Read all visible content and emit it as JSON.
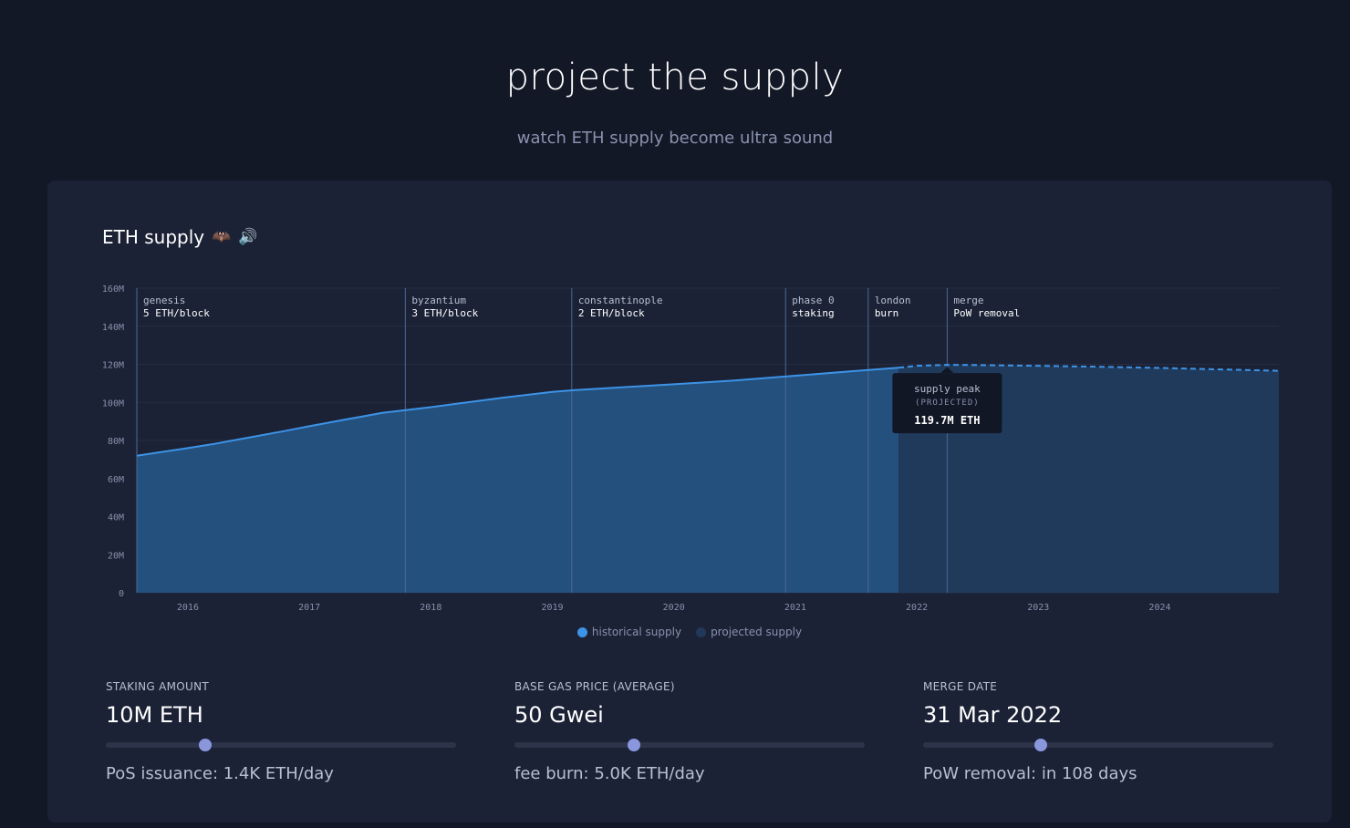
{
  "header": {
    "title": "project the supply",
    "subtitle": "watch ETH supply become ultra sound"
  },
  "card": {
    "title": "ETH supply",
    "icons": [
      "bat-icon",
      "speaker-icon"
    ]
  },
  "colors": {
    "historical_line": "#3d93e6",
    "historical_fill": "#23507d",
    "projected_fill": "#203a5c",
    "projected_line": "#3d93e6",
    "grid": "#262e44",
    "event_line": "#4d6894",
    "tooltip_bg": "#121726",
    "slider_thumb": "#8a97dd",
    "legend_historical": "#3d93e6",
    "legend_projected": "#22385a"
  },
  "chart_data": {
    "type": "area",
    "title": "ETH supply",
    "xlim": [
      2015.58,
      2024.98
    ],
    "ylim": [
      0,
      160
    ],
    "y_ticks": [
      0,
      20,
      40,
      60,
      80,
      100,
      120,
      140,
      160
    ],
    "y_tick_labels": [
      "0",
      "20M",
      "40M",
      "60M",
      "80M",
      "100M",
      "120M",
      "140M",
      "160M"
    ],
    "x_ticks": [
      2016,
      2017,
      2018,
      2019,
      2020,
      2021,
      2022,
      2023,
      2024
    ],
    "x_tick_labels": [
      "2016",
      "2017",
      "2018",
      "2019",
      "2020",
      "2021",
      "2022",
      "2023",
      "2024"
    ],
    "grid": true,
    "series": [
      {
        "name": "historical supply",
        "style": "solid",
        "x": [
          2015.58,
          2016,
          2016.2,
          2016.5,
          2016.8,
          2017,
          2017.3,
          2017.6,
          2017.8,
          2018,
          2018.3,
          2018.6,
          2019,
          2019.2,
          2019.6,
          2020,
          2020.5,
          2021,
          2021.5,
          2021.85
        ],
        "y": [
          72,
          76,
          78,
          81.5,
          85,
          87.5,
          91,
          94.5,
          96,
          97.5,
          100,
          102.5,
          105.5,
          106.5,
          108,
          109.5,
          111.5,
          114,
          116.5,
          118.2
        ]
      },
      {
        "name": "projected supply",
        "style": "dashed",
        "x": [
          2021.85,
          2022,
          2022.25,
          2022.5,
          2023,
          2023.5,
          2024,
          2024.5,
          2024.98
        ],
        "y": [
          118.2,
          119.2,
          119.7,
          119.6,
          119.2,
          118.7,
          118.1,
          117.3,
          116.6
        ]
      }
    ],
    "events": [
      {
        "x": 2015.58,
        "name": "genesis",
        "detail": "5 ETH/block"
      },
      {
        "x": 2017.79,
        "name": "byzantium",
        "detail": "3 ETH/block"
      },
      {
        "x": 2019.16,
        "name": "constantinople",
        "detail": "2 ETH/block"
      },
      {
        "x": 2020.92,
        "name": "phase 0",
        "detail": "staking"
      },
      {
        "x": 2021.6,
        "name": "london",
        "detail": "burn"
      },
      {
        "x": 2022.25,
        "name": "merge",
        "detail": "PoW removal"
      }
    ],
    "tooltip": {
      "title": "supply peak",
      "subtitle": "(PROJECTED)",
      "value": "119.7M ETH",
      "x": 2022.25,
      "y": 119.7
    },
    "legend": [
      "historical supply",
      "projected supply"
    ],
    "legend_position": "bottom-center"
  },
  "legend": {
    "historical": "historical supply",
    "projected": "projected supply"
  },
  "controls": [
    {
      "label": "STAKING AMOUNT",
      "value": "10M ETH",
      "slider_fraction": 0.285,
      "detail": "PoS issuance: 1.4K ETH/day"
    },
    {
      "label": "BASE GAS PRICE (AVERAGE)",
      "value": "50 Gwei",
      "slider_fraction": 0.341,
      "detail": "fee burn: 5.0K ETH/day"
    },
    {
      "label": "MERGE DATE",
      "value": "31 Mar 2022",
      "slider_fraction": 0.335,
      "detail": "PoW removal: in 108 days"
    }
  ]
}
